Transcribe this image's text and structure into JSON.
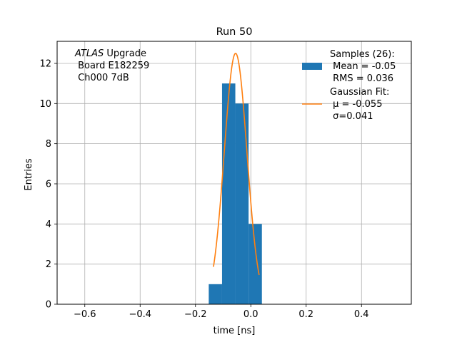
{
  "chart_data": {
    "type": "bar",
    "title": "Run 50",
    "xlabel": "time [ns]",
    "ylabel": "Entries",
    "xlim": [
      -0.7,
      0.58
    ],
    "ylim": [
      0,
      13.1
    ],
    "grid": true,
    "x_ticks": [
      -0.6,
      -0.4,
      -0.2,
      0.0,
      0.2,
      0.4
    ],
    "x_tick_labels": [
      "−0.6",
      "−0.4",
      "−0.2",
      "0.0",
      "0.2",
      "0.4"
    ],
    "y_ticks": [
      0,
      2,
      4,
      6,
      8,
      10,
      12
    ],
    "y_tick_labels": [
      "0",
      "2",
      "4",
      "6",
      "8",
      "10",
      "12"
    ],
    "histogram": {
      "color": "#1f77b4",
      "bins": [
        {
          "x0": -0.152,
          "x1": -0.104,
          "count": 1
        },
        {
          "x0": -0.104,
          "x1": -0.056,
          "count": 11
        },
        {
          "x0": -0.056,
          "x1": -0.008,
          "count": 10
        },
        {
          "x0": -0.008,
          "x1": 0.04,
          "count": 4
        }
      ]
    },
    "gaussian_fit": {
      "color": "#ff7f0e",
      "amplitude": 12.5,
      "mu": -0.055,
      "sigma": 0.041,
      "x_range": [
        -0.135,
        0.03
      ]
    },
    "annotation": {
      "italic_part": "ATLAS",
      "rest_line1": " Upgrade",
      "line2": " Board E182259",
      "line3": " Ch000 7dB"
    },
    "legend": {
      "placement": "top-right",
      "entries": [
        {
          "kind": "patch",
          "color": "#1f77b4",
          "lines": [
            "Samples (26):",
            " Mean = -0.05",
            " RMS = 0.036"
          ]
        },
        {
          "kind": "line",
          "color": "#ff7f0e",
          "lines": [
            "Gaussian Fit:",
            " μ = -0.055",
            " σ=0.041"
          ]
        }
      ]
    }
  }
}
